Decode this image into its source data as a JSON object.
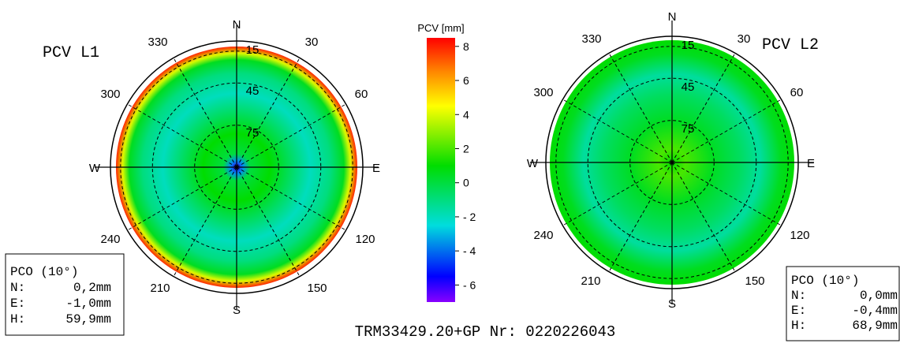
{
  "colors": {
    "red": "#ff0000",
    "orange": "#ff8800",
    "yellow": "#ffff00",
    "green": "#00dd00",
    "cyan": "#00dddd",
    "blue": "#0000ff",
    "violet": "#8800ff"
  },
  "chart_data": [
    {
      "type": "polar-heatmap",
      "title": "PCV L1",
      "compass": [
        "N",
        "E",
        "S",
        "W"
      ],
      "azimuth_labels": [
        "30",
        "60",
        "120",
        "150",
        "210",
        "240",
        "300",
        "330"
      ],
      "elevation_labels": [
        "15",
        "45",
        "75"
      ],
      "pco_box": {
        "header": "PCO (10°)",
        "rows": [
          {
            "label": "N:",
            "value": "0,2mm"
          },
          {
            "label": "E:",
            "value": "-1,0mm"
          },
          {
            "label": "H:",
            "value": "59,9mm"
          }
        ]
      },
      "pcv_profile": [
        {
          "elevation": 0,
          "pcv": 8
        },
        {
          "elevation": 5,
          "pcv": 4
        },
        {
          "elevation": 10,
          "pcv": 0.5
        },
        {
          "elevation": 20,
          "pcv": -1
        },
        {
          "elevation": 35,
          "pcv": -2
        },
        {
          "elevation": 50,
          "pcv": -0.5
        },
        {
          "elevation": 65,
          "pcv": 1
        },
        {
          "elevation": 80,
          "pcv": 0
        },
        {
          "elevation": 85,
          "pcv": -3.5
        },
        {
          "elevation": 90,
          "pcv": -6
        }
      ]
    },
    {
      "type": "polar-heatmap",
      "title": "PCV L2",
      "compass": [
        "N",
        "E",
        "S",
        "W"
      ],
      "azimuth_labels": [
        "30",
        "60",
        "120",
        "150",
        "210",
        "240",
        "300",
        "330"
      ],
      "elevation_labels": [
        "15",
        "45",
        "75"
      ],
      "pco_box": {
        "header": "PCO (10°)",
        "rows": [
          {
            "label": "N:",
            "value": "0,0mm"
          },
          {
            "label": "E:",
            "value": "-0,4mm"
          },
          {
            "label": "H:",
            "value": "68,9mm"
          }
        ]
      },
      "pcv_profile": [
        {
          "elevation": 0,
          "pcv": 1
        },
        {
          "elevation": 10,
          "pcv": 0.5
        },
        {
          "elevation": 25,
          "pcv": -1.5
        },
        {
          "elevation": 40,
          "pcv": -0.5
        },
        {
          "elevation": 60,
          "pcv": 0.5
        },
        {
          "elevation": 80,
          "pcv": 2
        },
        {
          "elevation": 90,
          "pcv": 1
        }
      ]
    }
  ],
  "colorbar": {
    "label": "PCV [mm]",
    "min": -7,
    "max": 8.5,
    "ticks": [
      "8",
      "6",
      "4",
      "2",
      "0",
      "- 2",
      "- 4",
      "- 6"
    ],
    "tick_values": [
      8,
      6,
      4,
      2,
      0,
      -2,
      -4,
      -6
    ]
  },
  "footer": "TRM33429.20+GP Nr: 0220226043"
}
